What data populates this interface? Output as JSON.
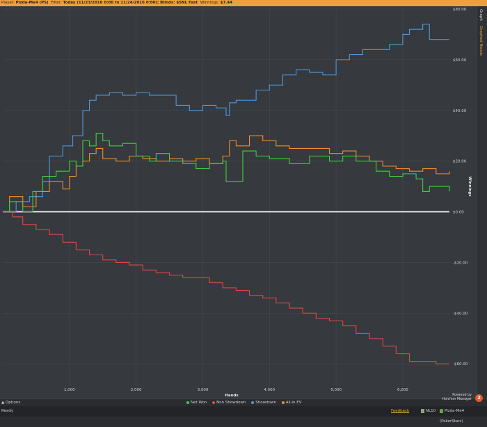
{
  "filter_bar": {
    "player_label": "Player:",
    "player": "Pizda-Me4 (PS)",
    "filter_label": "Filter:",
    "filter": "Today (11/23/2016 0:00 to 11/24/2016 0:00); Blinds: $5NL Fast",
    "winnings_label": "Winnings:",
    "winnings": "$7.44"
  },
  "side_tabs": {
    "graph": "Graph",
    "graphed_hands": "Graphed Hands"
  },
  "options_label": "▲ Options",
  "branding": {
    "powered": "Powered by",
    "product": "Hold'em Manager",
    "logo": "2"
  },
  "status": {
    "ready": "Ready",
    "feedback": "Feedback",
    "stakes": "NL10",
    "account": "Pizda-Me4 (PokerStars)"
  },
  "colors": {
    "net_won": "#3ed23e",
    "non_showdown": "#e04848",
    "showdown": "#4b9be0",
    "allin_ev": "#f0902a",
    "accent": "#e8a33c"
  },
  "chart_data": {
    "type": "line",
    "xlabel": "Hands",
    "ylabel": "Winnings",
    "xlim": [
      0,
      6700
    ],
    "ylim": [
      -69,
      80
    ],
    "x_ticks": [
      1000,
      2000,
      3000,
      4000,
      5000,
      6000
    ],
    "x_tick_labels": [
      "1,000",
      "2,000",
      "3,000",
      "4,000",
      "5,000",
      "6,000"
    ],
    "y_ticks": [
      80,
      60,
      40,
      20,
      0,
      -20,
      -40,
      -60
    ],
    "y_tick_labels": [
      "$80.00",
      "$60.00",
      "$40.00",
      "$20.00",
      "$0.00",
      "-$20.00",
      "-$40.00",
      "-$60.00"
    ],
    "grid": true,
    "legend_position": "bottom",
    "series": [
      {
        "name": "Net Won",
        "x": [
          0,
          100,
          300,
          450,
          600,
          800,
          1000,
          1100,
          1200,
          1300,
          1400,
          1500,
          1600,
          1800,
          2000,
          2200,
          2300,
          2500,
          2700,
          2900,
          3100,
          3300,
          3350,
          3600,
          3800,
          4000,
          4300,
          4600,
          4900,
          5100,
          5300,
          5600,
          5800,
          6000,
          6200,
          6300,
          6400,
          6700
        ],
        "values": [
          0,
          4,
          0,
          8,
          14,
          16,
          20,
          18,
          28,
          26,
          31,
          28,
          26,
          27,
          22,
          20,
          23,
          20,
          19,
          17,
          19,
          20,
          12,
          24,
          22,
          21,
          19,
          22,
          20,
          22,
          20,
          16,
          14,
          15,
          13,
          8,
          10,
          8
        ]
      },
      {
        "name": "Non Showdown",
        "x": [
          0,
          150,
          300,
          500,
          700,
          900,
          1100,
          1300,
          1500,
          1700,
          1900,
          2100,
          2300,
          2500,
          2700,
          2900,
          3100,
          3300,
          3500,
          3700,
          3900,
          4100,
          4300,
          4500,
          4700,
          4900,
          5100,
          5300,
          5500,
          5700,
          5900,
          6100,
          6300,
          6500,
          6700
        ],
        "values": [
          0,
          -2,
          -5,
          -7,
          -9,
          -12,
          -15,
          -17,
          -19,
          -20,
          -21,
          -23,
          -24,
          -25,
          -26,
          -26,
          -28,
          -30,
          -31,
          -33,
          -34,
          -36,
          -38,
          -40,
          -42,
          -43,
          -45,
          -48,
          -50,
          -53,
          -56,
          -59,
          -59,
          -60,
          -60
        ]
      },
      {
        "name": "Showdown",
        "x": [
          0,
          200,
          400,
          600,
          700,
          900,
          1050,
          1200,
          1300,
          1400,
          1600,
          1800,
          2000,
          2200,
          2400,
          2600,
          2800,
          3000,
          3200,
          3350,
          3400,
          3500,
          3800,
          4000,
          4200,
          4400,
          4600,
          4800,
          5000,
          5200,
          5400,
          5600,
          5800,
          6000,
          6100,
          6300,
          6400,
          6700
        ],
        "values": [
          0,
          4,
          6,
          12,
          22,
          26,
          30,
          40,
          44,
          46,
          47,
          46,
          47,
          46,
          46,
          42,
          40,
          42,
          41,
          38,
          43,
          44,
          48,
          50,
          54,
          56,
          55,
          54,
          60,
          62,
          64,
          64,
          66,
          70,
          72,
          74,
          68,
          68
        ]
      },
      {
        "name": "All-in EV",
        "x": [
          0,
          100,
          300,
          500,
          700,
          900,
          1000,
          1100,
          1200,
          1300,
          1400,
          1500,
          1700,
          1900,
          2100,
          2300,
          2500,
          2700,
          2900,
          3100,
          3300,
          3400,
          3500,
          3700,
          3900,
          4100,
          4300,
          4600,
          4900,
          5100,
          5300,
          5500,
          5700,
          5900,
          6100,
          6300,
          6500,
          6700
        ],
        "values": [
          0,
          6,
          2,
          8,
          12,
          9,
          14,
          18,
          20,
          23,
          25,
          21,
          20,
          22,
          21,
          20,
          21,
          20,
          21,
          19,
          22,
          28,
          26,
          30,
          28,
          26,
          25,
          25,
          23,
          24,
          22,
          20,
          18,
          17,
          16,
          17,
          15,
          16
        ]
      }
    ]
  }
}
